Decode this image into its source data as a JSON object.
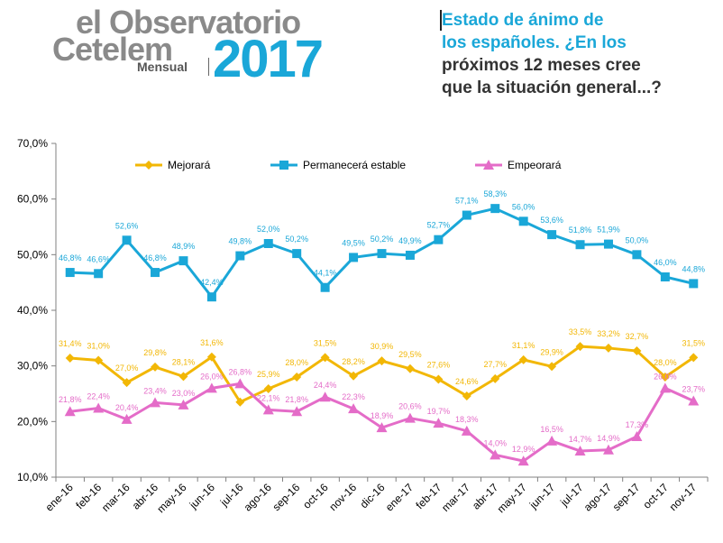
{
  "logo": {
    "line1": "el Observatorio",
    "line2": "Cetelem",
    "sub": "Mensual",
    "year": "2017"
  },
  "question": {
    "line1": "Estado de ánimo de",
    "line2": "los españoles. ¿En los",
    "line3": "próximos 12 meses cree",
    "line4": "que la situación general...?"
  },
  "colors": {
    "mejorara": "#f2b705",
    "estable": "#1aa7d8",
    "empeorara": "#e46cc8"
  },
  "chart_data": {
    "type": "line",
    "title": "",
    "xlabel": "",
    "ylabel": "",
    "ylim": [
      10,
      70
    ],
    "yticks": [
      "70,0%",
      "60,0%",
      "50,0%",
      "40,0%",
      "30,0%",
      "20,0%",
      "10,0%"
    ],
    "grid": false,
    "legend_position": "top",
    "categories": [
      "ene-16",
      "feb-16",
      "mar-16",
      "abr-16",
      "may-16",
      "jun-16",
      "jul-16",
      "ago-16",
      "sep-16",
      "oct-16",
      "nov-16",
      "dic-16",
      "ene-17",
      "feb-17",
      "mar-17",
      "abr-17",
      "may-17",
      "jun-17",
      "jul-17",
      "ago-17",
      "sep-17",
      "oct-17",
      "nov-17"
    ],
    "series": [
      {
        "name": "Mejorará",
        "color": "#f2b705",
        "marker": "diamond",
        "values": [
          31.4,
          31.0,
          27.0,
          29.8,
          28.1,
          31.6,
          23.5,
          25.9,
          28.0,
          31.5,
          28.2,
          30.9,
          29.5,
          27.6,
          24.6,
          27.7,
          31.1,
          29.9,
          33.5,
          33.2,
          32.7,
          28.0,
          31.5
        ],
        "labels": [
          "31,4%",
          "31,0%",
          "27,0%",
          "29,8%",
          "28,1%",
          "31,6%",
          "",
          "25,9%",
          "28,0%",
          "31,5%",
          "28,2%",
          "30,9%",
          "29,5%",
          "27,6%",
          "24,6%",
          "27,7%",
          "31,1%",
          "29,9%",
          "33,5%",
          "33,2%",
          "32,7%",
          "28,0%",
          "31,5%"
        ]
      },
      {
        "name": "Permanecerá estable",
        "color": "#1aa7d8",
        "marker": "square",
        "values": [
          46.8,
          46.6,
          52.6,
          46.8,
          48.9,
          42.4,
          49.8,
          52.0,
          50.2,
          44.1,
          49.5,
          50.2,
          49.9,
          52.7,
          57.1,
          58.3,
          56.0,
          53.6,
          51.8,
          51.9,
          50.0,
          46.0,
          44.8
        ],
        "labels": [
          "46,8%",
          "46,6%",
          "52,6%",
          "46,8%",
          "48,9%",
          "42,4%",
          "49,8%",
          "52,0%",
          "50,2%",
          "44,1%",
          "49,5%",
          "50,2%",
          "49,9%",
          "52,7%",
          "57,1%",
          "58,3%",
          "56,0%",
          "53,6%",
          "51,8%",
          "51,9%",
          "50,0%",
          "46,0%",
          "44,8%"
        ]
      },
      {
        "name": "Empeorará",
        "color": "#e46cc8",
        "marker": "triangle",
        "values": [
          21.8,
          22.4,
          20.4,
          23.4,
          23.0,
          26.0,
          26.8,
          22.1,
          21.8,
          24.4,
          22.3,
          18.9,
          20.6,
          19.7,
          18.3,
          14.0,
          12.9,
          16.5,
          14.7,
          14.9,
          17.3,
          26.0,
          23.7
        ],
        "labels": [
          "21,8%",
          "22,4%",
          "20,4%",
          "23,4%",
          "23,0%",
          "26,0%",
          "26,8%",
          "22,1%",
          "21,8%",
          "24,4%",
          "22,3%",
          "18,9%",
          "20,6%",
          "19,7%",
          "18,3%",
          "14,0%",
          "12,9%",
          "16,5%",
          "14,7%",
          "14,9%",
          "17,3%",
          "26,0%",
          "23,7%"
        ]
      }
    ]
  }
}
